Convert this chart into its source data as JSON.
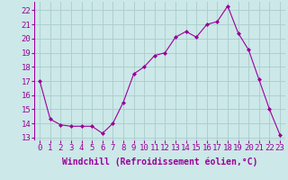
{
  "hours": [
    0,
    1,
    2,
    3,
    4,
    5,
    6,
    7,
    8,
    9,
    10,
    11,
    12,
    13,
    14,
    15,
    16,
    17,
    18,
    19,
    20,
    21,
    22,
    23
  ],
  "values": [
    17.0,
    14.3,
    13.9,
    13.8,
    13.8,
    13.8,
    13.3,
    14.0,
    15.5,
    17.5,
    18.0,
    18.8,
    19.0,
    20.1,
    20.5,
    20.1,
    21.0,
    21.2,
    22.3,
    20.4,
    19.2,
    17.1,
    15.0,
    13.2
  ],
  "line_color": "#990099",
  "marker": "D",
  "marker_size": 2,
  "background_color": "#cce8e8",
  "grid_color": "#aacccc",
  "xlabel": "Windchill (Refroidissement éolien,°C)",
  "xlabel_fontsize": 7,
  "tick_fontsize": 6.5,
  "ylim": [
    12.8,
    22.6
  ],
  "yticks": [
    13,
    14,
    15,
    16,
    17,
    18,
    19,
    20,
    21,
    22
  ],
  "xlim": [
    -0.5,
    23.5
  ]
}
